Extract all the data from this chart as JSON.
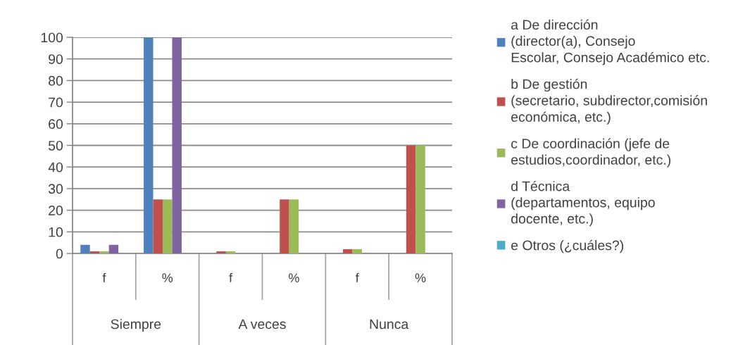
{
  "chart_data": {
    "type": "bar",
    "categories": [
      "f",
      "%",
      "f",
      "%",
      "f",
      "%"
    ],
    "series": [
      {
        "name": "a De dirección\n(director(a), Consejo\nEscolar, Consejo Académico etc.",
        "color": "#4f81bd",
        "values": [
          4,
          100,
          null,
          null,
          null,
          null
        ]
      },
      {
        "name": "b De gestión\n(secretario, subdirector,comisión\neconómica, etc.)",
        "color": "#c0504d",
        "values": [
          1,
          25,
          1,
          25,
          2,
          50
        ]
      },
      {
        "name": "c De coordinación (jefe de\nestudios,coordinador, etc.)",
        "color": "#9bbb59",
        "values": [
          1,
          25,
          1,
          25,
          2,
          50
        ]
      },
      {
        "name": "d Técnica\n(departamentos, equipo\ndocente, etc.)",
        "color": "#8064a2",
        "values": [
          4,
          100,
          null,
          null,
          null,
          null
        ]
      },
      {
        "name": "e Otros (¿cuáles?)",
        "color": "#4bacc6",
        "values": [
          null,
          null,
          null,
          null,
          null,
          null
        ]
      }
    ],
    "ylim": [
      0,
      100
    ],
    "yticks": [
      0,
      10,
      20,
      30,
      40,
      50,
      60,
      70,
      80,
      90,
      100
    ],
    "grid": "y",
    "legend": "right",
    "annotations": [
      "Siempre",
      "A veces",
      "Nunca"
    ]
  }
}
